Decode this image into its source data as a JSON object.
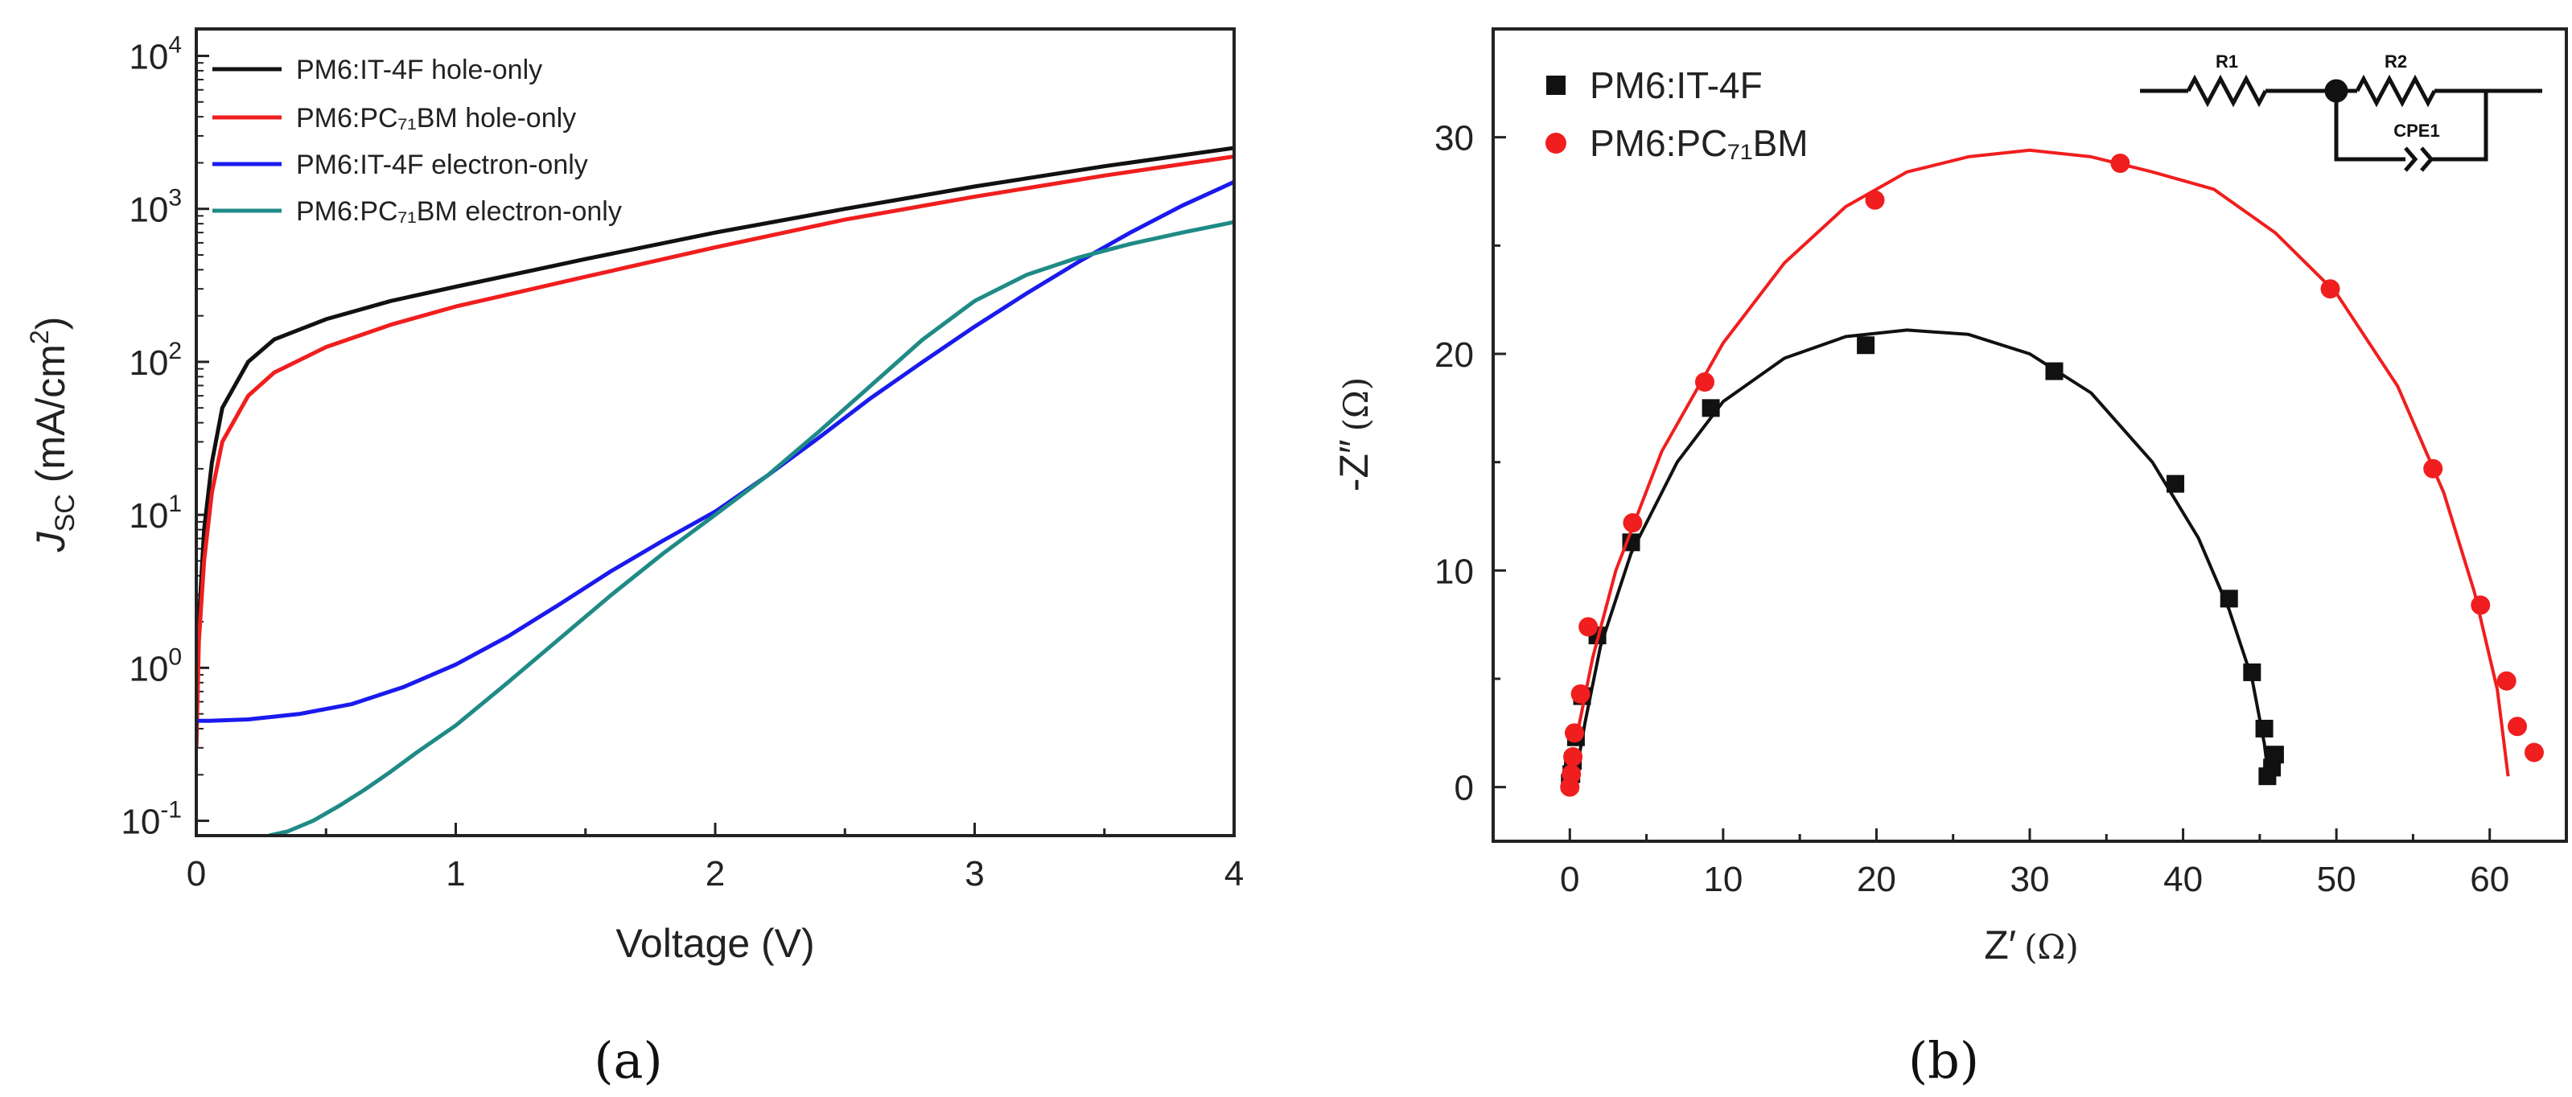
{
  "colors": {
    "black": "#111111",
    "red": "#f01e1e",
    "blue": "#1a1aee",
    "teal": "#1f8a86"
  },
  "panel_labels": {
    "a": "(a)",
    "b": "(b)"
  },
  "chart_data": [
    {
      "type": "line",
      "panel": "a",
      "title": "",
      "xlabel": "Voltage (V)",
      "ylabel_main": "J",
      "ylabel_sub": "SC",
      "ylabel_units": " (mA/cm",
      "ylabel_sup": "2",
      "ylabel_close": ")",
      "yscale": "log",
      "xlim": [
        0,
        4
      ],
      "ylim": [
        0.08,
        15000
      ],
      "x_ticks": [
        "0",
        "1",
        "2",
        "3",
        "4"
      ],
      "y_ticks": [
        {
          "base": "10",
          "exp": "-1",
          "value": 0.1
        },
        {
          "base": "10",
          "exp": "0",
          "value": 1
        },
        {
          "base": "10",
          "exp": "1",
          "value": 10
        },
        {
          "base": "10",
          "exp": "2",
          "value": 100
        },
        {
          "base": "10",
          "exp": "3",
          "value": 1000
        },
        {
          "base": "10",
          "exp": "4",
          "value": 10000
        }
      ],
      "legend_position": "top-left",
      "series": [
        {
          "name": "PM6:IT-4F hole-only",
          "color": "#111111",
          "x": [
            0,
            0.01,
            0.03,
            0.06,
            0.1,
            0.2,
            0.3,
            0.5,
            0.75,
            1.0,
            1.5,
            2.0,
            2.5,
            3.0,
            3.5,
            4.0
          ],
          "y": [
            0.3,
            2,
            8,
            22,
            50,
            100,
            140,
            190,
            250,
            310,
            470,
            700,
            1000,
            1400,
            1900,
            2500
          ]
        },
        {
          "name": "PM6:PC₇₁BM hole-only",
          "color": "#f01e1e",
          "x": [
            0,
            0.01,
            0.03,
            0.06,
            0.1,
            0.2,
            0.3,
            0.5,
            0.75,
            1.0,
            1.5,
            2.0,
            2.5,
            3.0,
            3.5,
            4.0
          ],
          "y": [
            0.3,
            1.5,
            5,
            14,
            30,
            60,
            85,
            125,
            175,
            230,
            360,
            560,
            850,
            1200,
            1650,
            2200
          ]
        },
        {
          "name": "PM6:IT-4F electron-only",
          "color": "#1a1aee",
          "x": [
            0,
            0.05,
            0.2,
            0.4,
            0.6,
            0.8,
            1.0,
            1.2,
            1.4,
            1.6,
            1.8,
            2.0,
            2.2,
            2.4,
            2.6,
            2.8,
            3.0,
            3.2,
            3.4,
            3.6,
            3.8,
            4.0
          ],
          "y": [
            0.45,
            0.45,
            0.46,
            0.5,
            0.58,
            0.75,
            1.05,
            1.6,
            2.6,
            4.3,
            6.8,
            10.5,
            18,
            32,
            58,
            100,
            170,
            280,
            450,
            700,
            1050,
            1500
          ]
        },
        {
          "name": "PM6:PC₇₁BM electron-only",
          "color": "#1f8a86",
          "x": [
            0.28,
            0.35,
            0.45,
            0.55,
            0.65,
            0.75,
            0.85,
            1.0,
            1.2,
            1.4,
            1.6,
            1.8,
            2.0,
            2.2,
            2.4,
            2.6,
            2.8,
            3.0,
            3.2,
            3.4,
            3.6,
            3.8,
            4.0
          ],
          "y": [
            0.08,
            0.085,
            0.1,
            0.125,
            0.16,
            0.21,
            0.28,
            0.42,
            0.8,
            1.55,
            3.0,
            5.6,
            10,
            18,
            35,
            70,
            140,
            250,
            370,
            480,
            590,
            700,
            820
          ]
        }
      ]
    },
    {
      "type": "scatter",
      "panel": "b",
      "title": "",
      "xlabel_main": "Z′",
      "xlabel_unit": "(Ω)",
      "ylabel_main": "-Z″",
      "ylabel_unit": "(Ω)",
      "xlim": [
        -5,
        65
      ],
      "ylim": [
        -2.5,
        35
      ],
      "x_ticks": [
        "0",
        "10",
        "20",
        "30",
        "40",
        "50",
        "60"
      ],
      "y_ticks": [
        "0",
        "10",
        "20",
        "30"
      ],
      "legend_position": "top-left",
      "inset_circuit": {
        "r1": "R1",
        "r2": "R2",
        "cpe": "CPE1"
      },
      "series": [
        {
          "name": "PM6:IT-4F",
          "marker": "square",
          "color": "#111111",
          "points": [
            [
              0,
              0.2
            ],
            [
              0.1,
              0.6
            ],
            [
              0.2,
              1.2
            ],
            [
              0.4,
              2.3
            ],
            [
              0.8,
              4.2
            ],
            [
              1.8,
              7.0
            ],
            [
              4.0,
              11.3
            ],
            [
              9.2,
              17.5
            ],
            [
              19.3,
              20.4
            ],
            [
              31.6,
              19.2
            ],
            [
              39.5,
              14.0
            ],
            [
              43.0,
              8.7
            ],
            [
              44.5,
              5.3
            ],
            [
              45.3,
              2.7
            ],
            [
              45.5,
              0.5
            ],
            [
              45.8,
              0.9
            ],
            [
              46.0,
              1.5
            ]
          ],
          "fit_x": [
            0.5,
            1.0,
            2.0,
            4.0,
            7.0,
            10.0,
            14.0,
            18.0,
            22.0,
            26.0,
            30.0,
            34.0,
            38.0,
            41.0,
            43.0,
            44.5,
            45.3,
            45.6
          ],
          "fit_y": [
            1.0,
            3.0,
            6.5,
            10.8,
            15.0,
            17.8,
            19.8,
            20.8,
            21.1,
            20.9,
            20.0,
            18.2,
            15.0,
            11.5,
            8.2,
            5.0,
            2.0,
            0.3
          ]
        },
        {
          "name": "PM6:PC₇₁BM",
          "marker": "circle",
          "color": "#f01e1e",
          "points": [
            [
              0,
              0
            ],
            [
              0.1,
              0.6
            ],
            [
              0.2,
              1.4
            ],
            [
              0.3,
              2.5
            ],
            [
              0.7,
              4.3
            ],
            [
              1.2,
              7.4
            ],
            [
              4.1,
              12.2
            ],
            [
              8.8,
              18.7
            ],
            [
              19.9,
              27.1
            ],
            [
              35.9,
              28.8
            ],
            [
              49.6,
              23.0
            ],
            [
              56.3,
              14.7
            ],
            [
              59.4,
              8.4
            ],
            [
              61.1,
              4.9
            ],
            [
              61.8,
              2.8
            ],
            [
              62.9,
              1.6
            ]
          ],
          "fit_x": [
            0.5,
            1.5,
            3.0,
            6.0,
            10.0,
            14.0,
            18.0,
            22.0,
            26.0,
            30.0,
            34.0,
            38.0,
            42.0,
            46.0,
            50.0,
            54.0,
            57.0,
            59.0,
            60.5,
            61.2
          ],
          "fit_y": [
            2.5,
            6.0,
            10.0,
            15.5,
            20.5,
            24.2,
            26.8,
            28.4,
            29.1,
            29.4,
            29.1,
            28.4,
            27.6,
            25.6,
            22.8,
            18.5,
            13.6,
            9.0,
            4.5,
            0.5
          ]
        }
      ]
    }
  ]
}
